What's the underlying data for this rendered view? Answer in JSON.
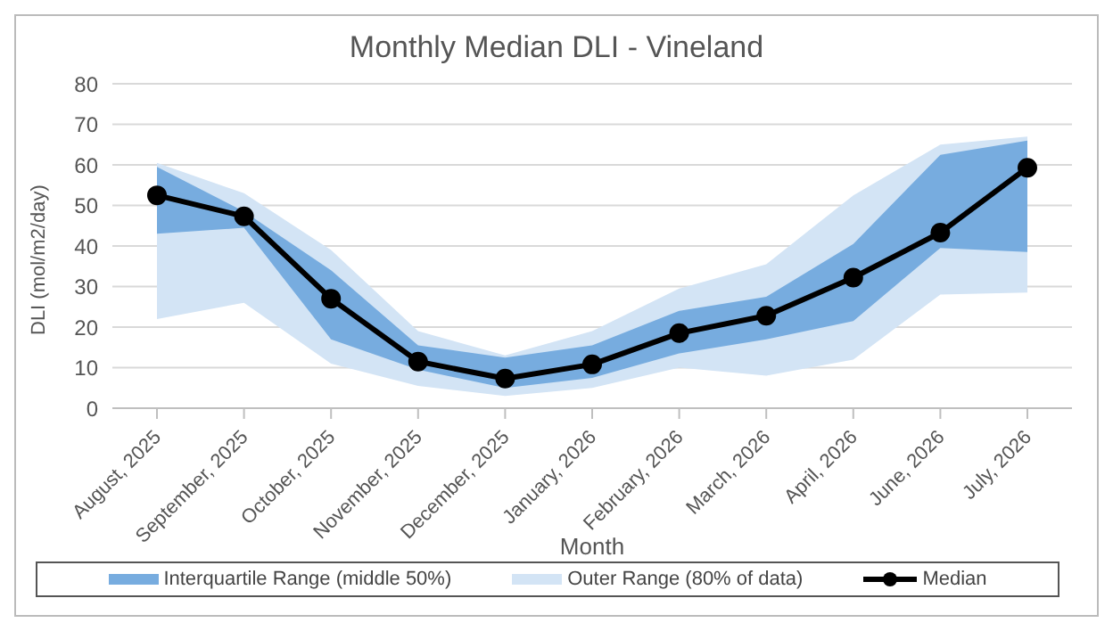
{
  "chart_data": {
    "type": "line",
    "title": "Monthly Median DLI - Vineland",
    "xlabel": "Month",
    "ylabel": "DLI (mol/m2/day)",
    "categories": [
      "August, 2025",
      "September, 2025",
      "October, 2025",
      "November, 2025",
      "December, 2025",
      "January, 2026",
      "February, 2026",
      "March, 2026",
      "April, 2026",
      "June, 2026",
      "July, 2026"
    ],
    "series": [
      {
        "name": "Interquartile Range (middle 50%)",
        "type": "area",
        "color": "#77acdf",
        "values": [
          null,
          null,
          null,
          null,
          null,
          null,
          null,
          null,
          null,
          null,
          null
        ],
        "lower": [
          43,
          44.5,
          17,
          9.5,
          5,
          7.5,
          13.5,
          17,
          21.5,
          39.5,
          38.5
        ],
        "upper": [
          59.5,
          48.5,
          34,
          15.5,
          12.5,
          15.5,
          24,
          27.5,
          40.5,
          62.5,
          66
        ]
      },
      {
        "name": "Outer Range (80% of data)",
        "type": "area",
        "color": "#d3e4f5",
        "values": [
          null,
          null,
          null,
          null,
          null,
          null,
          null,
          null,
          null,
          null,
          null
        ],
        "lower": [
          22,
          26,
          11,
          5.5,
          3,
          5,
          10,
          8,
          12,
          28,
          28.5
        ],
        "upper": [
          60.5,
          53,
          39,
          19,
          13,
          19,
          29.5,
          35.5,
          52.5,
          65,
          67
        ]
      },
      {
        "name": "Median",
        "color": "#000000",
        "marker": "circle",
        "values": [
          52.5,
          47.3,
          27,
          11.5,
          7.3,
          10.8,
          18.5,
          22.8,
          32.2,
          43.3,
          59.3
        ]
      }
    ],
    "ylim": [
      0,
      80
    ],
    "yticks": [
      0,
      10,
      20,
      30,
      40,
      50,
      60,
      70,
      80
    ],
    "grid": "y",
    "legend": "bottom"
  }
}
